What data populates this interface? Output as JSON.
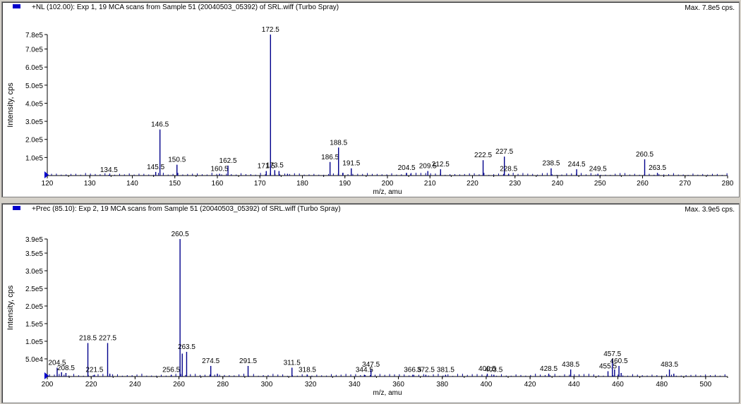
{
  "panels": [
    {
      "title": "+NL (102.00): Exp 1, 19 MCA scans from Sample 51 (20040503_05392) of SRL.wiff (Turbo Spray)",
      "max_label": "Max. 7.8e5 cps.",
      "colors": {
        "trace": "#00008b",
        "marker": "#0000cc"
      },
      "chart_data": {
        "type": "bar",
        "xlabel": "m/z, amu",
        "ylabel": "Intensity, cps",
        "xlim": [
          120,
          280
        ],
        "ylim": [
          0,
          780000
        ],
        "x_ticks": [
          120,
          130,
          140,
          150,
          160,
          170,
          180,
          190,
          200,
          210,
          220,
          230,
          240,
          250,
          260,
          270,
          280
        ],
        "y_ticks": [
          {
            "value": 100000,
            "label": "1.0e5"
          },
          {
            "value": 200000,
            "label": "2.0e5"
          },
          {
            "value": 300000,
            "label": "3.0e5"
          },
          {
            "value": 400000,
            "label": "4.0e5"
          },
          {
            "value": 500000,
            "label": "5.0e5"
          },
          {
            "value": 600000,
            "label": "6.0e5"
          },
          {
            "value": 700000,
            "label": "7.0e5"
          },
          {
            "value": 780000,
            "label": "7.8e5"
          }
        ],
        "peaks": [
          {
            "x": 134.5,
            "y": 4000,
            "label": "134.5"
          },
          {
            "x": 145.5,
            "y": 20000,
            "label": "145.5"
          },
          {
            "x": 146.5,
            "y": 255000,
            "label": "146.5"
          },
          {
            "x": 150.5,
            "y": 60000,
            "label": "150.5"
          },
          {
            "x": 160.5,
            "y": 10000,
            "label": "160.5"
          },
          {
            "x": 162.5,
            "y": 55000,
            "label": "162.5"
          },
          {
            "x": 171.5,
            "y": 25000,
            "label": "171.5"
          },
          {
            "x": 172.5,
            "y": 780000,
            "label": "172.5"
          },
          {
            "x": 173.5,
            "y": 30000,
            "label": "173.5"
          },
          {
            "x": 174.5,
            "y": 25000,
            "label": ""
          },
          {
            "x": 176.5,
            "y": 10000,
            "label": ""
          },
          {
            "x": 186.5,
            "y": 75000,
            "label": "186.5"
          },
          {
            "x": 188.5,
            "y": 155000,
            "label": "188.5"
          },
          {
            "x": 189.5,
            "y": 15000,
            "label": ""
          },
          {
            "x": 191.5,
            "y": 40000,
            "label": "191.5"
          },
          {
            "x": 204.5,
            "y": 15000,
            "label": "204.5"
          },
          {
            "x": 205.5,
            "y": 10000,
            "label": ""
          },
          {
            "x": 209.5,
            "y": 25000,
            "label": "209.5"
          },
          {
            "x": 212.5,
            "y": 35000,
            "label": "212.5"
          },
          {
            "x": 222.5,
            "y": 85000,
            "label": "222.5"
          },
          {
            "x": 227.5,
            "y": 105000,
            "label": "227.5"
          },
          {
            "x": 228.5,
            "y": 10000,
            "label": "228.5"
          },
          {
            "x": 238.5,
            "y": 40000,
            "label": "238.5"
          },
          {
            "x": 244.5,
            "y": 35000,
            "label": "244.5"
          },
          {
            "x": 249.5,
            "y": 10000,
            "label": "249.5"
          },
          {
            "x": 260.5,
            "y": 90000,
            "label": "260.5"
          },
          {
            "x": 263.5,
            "y": 15000,
            "label": "263.5"
          }
        ]
      }
    },
    {
      "title": "+Prec (85.10): Exp 2, 19 MCA scans from Sample 51 (20040503_05392) of SRL.wiff (Turbo Spray)",
      "max_label": "Max. 3.9e5 cps.",
      "colors": {
        "trace": "#00008b",
        "marker": "#0000cc"
      },
      "chart_data": {
        "type": "bar",
        "xlabel": "m/z, amu",
        "ylabel": "Intensity, cps",
        "xlim": [
          200,
          510
        ],
        "ylim": [
          0,
          390000
        ],
        "x_ticks": [
          200,
          220,
          240,
          260,
          280,
          300,
          320,
          340,
          360,
          380,
          400,
          420,
          440,
          460,
          480,
          500
        ],
        "y_ticks": [
          {
            "value": 50000,
            "label": "5.0e4"
          },
          {
            "value": 100000,
            "label": "1.0e5"
          },
          {
            "value": 150000,
            "label": "1.5e5"
          },
          {
            "value": 200000,
            "label": "2.0e5"
          },
          {
            "value": 250000,
            "label": "2.5e5"
          },
          {
            "value": 300000,
            "label": "3.0e5"
          },
          {
            "value": 350000,
            "label": "3.5e5"
          },
          {
            "value": 390000,
            "label": "3.9e5"
          }
        ],
        "peaks": [
          {
            "x": 204.5,
            "y": 25000,
            "label": "204.5"
          },
          {
            "x": 206.5,
            "y": 12000,
            "label": ""
          },
          {
            "x": 208.5,
            "y": 10000,
            "label": "208.5"
          },
          {
            "x": 218.5,
            "y": 95000,
            "label": "218.5"
          },
          {
            "x": 221.5,
            "y": 5000,
            "label": "221.5"
          },
          {
            "x": 227.5,
            "y": 95000,
            "label": "227.5"
          },
          {
            "x": 228.5,
            "y": 8000,
            "label": ""
          },
          {
            "x": 256.5,
            "y": 5000,
            "label": "256.5"
          },
          {
            "x": 260.5,
            "y": 390000,
            "label": "260.5"
          },
          {
            "x": 261.5,
            "y": 65000,
            "label": ""
          },
          {
            "x": 263.5,
            "y": 70000,
            "label": "263.5"
          },
          {
            "x": 274.5,
            "y": 30000,
            "label": "274.5"
          },
          {
            "x": 277.5,
            "y": 8000,
            "label": ""
          },
          {
            "x": 291.5,
            "y": 30000,
            "label": "291.5"
          },
          {
            "x": 311.5,
            "y": 25000,
            "label": "311.5"
          },
          {
            "x": 318.5,
            "y": 5000,
            "label": "318.5"
          },
          {
            "x": 344.5,
            "y": 5000,
            "label": "344.5"
          },
          {
            "x": 347.5,
            "y": 20000,
            "label": "347.5"
          },
          {
            "x": 366.5,
            "y": 5000,
            "label": "366.5"
          },
          {
            "x": 372.5,
            "y": 5000,
            "label": "372.5"
          },
          {
            "x": 381.5,
            "y": 5000,
            "label": "381.5"
          },
          {
            "x": 400.5,
            "y": 8000,
            "label": "400.5"
          },
          {
            "x": 403.5,
            "y": 5000,
            "label": "403.5"
          },
          {
            "x": 428.5,
            "y": 8000,
            "label": "428.5"
          },
          {
            "x": 438.5,
            "y": 20000,
            "label": "438.5"
          },
          {
            "x": 455.5,
            "y": 15000,
            "label": "455.5"
          },
          {
            "x": 457.5,
            "y": 50000,
            "label": "457.5"
          },
          {
            "x": 458.5,
            "y": 20000,
            "label": ""
          },
          {
            "x": 460.5,
            "y": 30000,
            "label": "460.5"
          },
          {
            "x": 461.5,
            "y": 10000,
            "label": ""
          },
          {
            "x": 483.5,
            "y": 20000,
            "label": "483.5"
          },
          {
            "x": 485.5,
            "y": 8000,
            "label": ""
          }
        ]
      }
    }
  ]
}
